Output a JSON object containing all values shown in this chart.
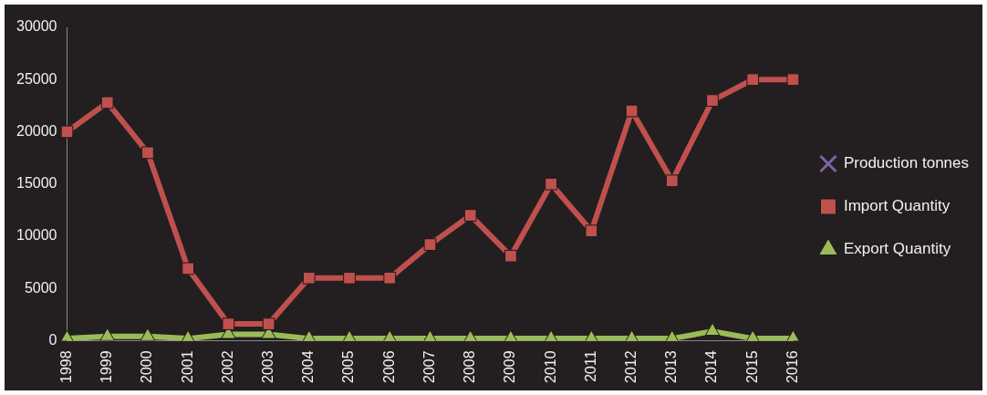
{
  "chart_data": {
    "type": "line",
    "categories": [
      "1998",
      "1999",
      "2000",
      "2001",
      "2002",
      "2003",
      "2004",
      "2005",
      "2006",
      "2007",
      "2008",
      "2009",
      "2010",
      "2011",
      "2012",
      "2013",
      "2014",
      "2015",
      "2016"
    ],
    "series": [
      {
        "name": "Production tonnes",
        "color": "#8064a2",
        "marker": "cross",
        "values": [
          null,
          null,
          null,
          null,
          null,
          null,
          null,
          null,
          null,
          null,
          null,
          null,
          null,
          null,
          null,
          null,
          null,
          null,
          null
        ]
      },
      {
        "name": "Import Quantity",
        "color": "#c0504d",
        "marker": "square",
        "values": [
          20000,
          22800,
          18000,
          6900,
          1600,
          1600,
          6000,
          6000,
          6000,
          9200,
          12000,
          8100,
          15000,
          10500,
          22000,
          15300,
          23000,
          25000,
          25000
        ]
      },
      {
        "name": "Export Quantity",
        "color": "#9bbb59",
        "marker": "triangle",
        "values": [
          200,
          400,
          400,
          200,
          600,
          600,
          200,
          200,
          200,
          200,
          200,
          200,
          200,
          200,
          200,
          200,
          900,
          200,
          200
        ]
      }
    ],
    "ylim": [
      0,
      30000
    ],
    "yticks": [
      0,
      5000,
      10000,
      15000,
      20000,
      25000,
      30000
    ],
    "grid": false,
    "legend": "right"
  }
}
